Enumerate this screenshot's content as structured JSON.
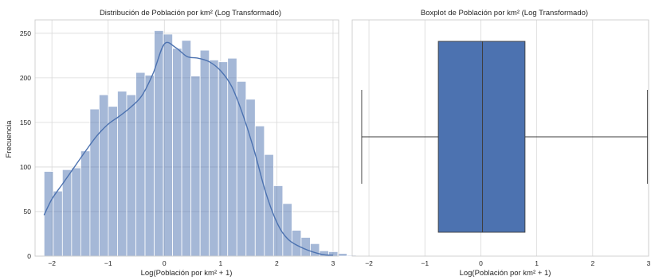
{
  "chart_data": [
    {
      "type": "bar",
      "subtype": "histogram_with_kde",
      "title": "Distribución de Población por km² (Log Transformado)",
      "xlabel": "Log(Población por km² + 1)",
      "ylabel": "Frecuencia",
      "xlim": [
        -2.3,
        3.1
      ],
      "ylim": [
        0,
        265
      ],
      "xticks": [
        "−2",
        "−1",
        "0",
        "1",
        "2",
        "3"
      ],
      "xtick_values": [
        -2,
        -1,
        0,
        1,
        2,
        3
      ],
      "yticks": [
        "0",
        "50",
        "100",
        "150",
        "200",
        "250"
      ],
      "ytick_values": [
        0,
        50,
        100,
        150,
        200,
        250
      ],
      "grid": true,
      "color": "#4c72b0",
      "bins": {
        "start": -2.14,
        "width": 0.1633,
        "counts": [
          95,
          73,
          97,
          99,
          118,
          165,
          181,
          168,
          185,
          181,
          206,
          203,
          253,
          249,
          233,
          242,
          202,
          231,
          220,
          218,
          222,
          196,
          176,
          146,
          114,
          79,
          59,
          29,
          21,
          14,
          6,
          5,
          3,
          1
        ]
      },
      "kde": {
        "x": [
          -2.14,
          -2.0,
          -1.8,
          -1.6,
          -1.4,
          -1.2,
          -1.0,
          -0.8,
          -0.6,
          -0.4,
          -0.2,
          0.0,
          0.2,
          0.4,
          0.6,
          0.8,
          1.0,
          1.2,
          1.4,
          1.6,
          1.8,
          2.0,
          2.2,
          2.5,
          2.8,
          3.0
        ],
        "y": [
          46,
          64,
          82,
          100,
          118,
          135,
          148,
          157,
          167,
          180,
          205,
          238,
          234,
          224,
          222,
          218,
          208,
          190,
          158,
          118,
          72,
          38,
          19,
          8,
          2,
          1
        ]
      }
    },
    {
      "type": "boxplot",
      "title": "Boxplot de Población por km² (Log Transformado)",
      "xlabel": "Log(Población por km² + 1)",
      "xlim": [
        -2.3,
        3.0
      ],
      "xticks": [
        "−2",
        "−1",
        "0",
        "1",
        "2",
        "3"
      ],
      "xtick_values": [
        -2,
        -1,
        0,
        1,
        2,
        3
      ],
      "grid": true,
      "color": "#4c72b0",
      "stats": {
        "min": -2.13,
        "q1": -0.76,
        "median": 0.03,
        "q3": 0.79,
        "max": 2.98
      }
    }
  ]
}
